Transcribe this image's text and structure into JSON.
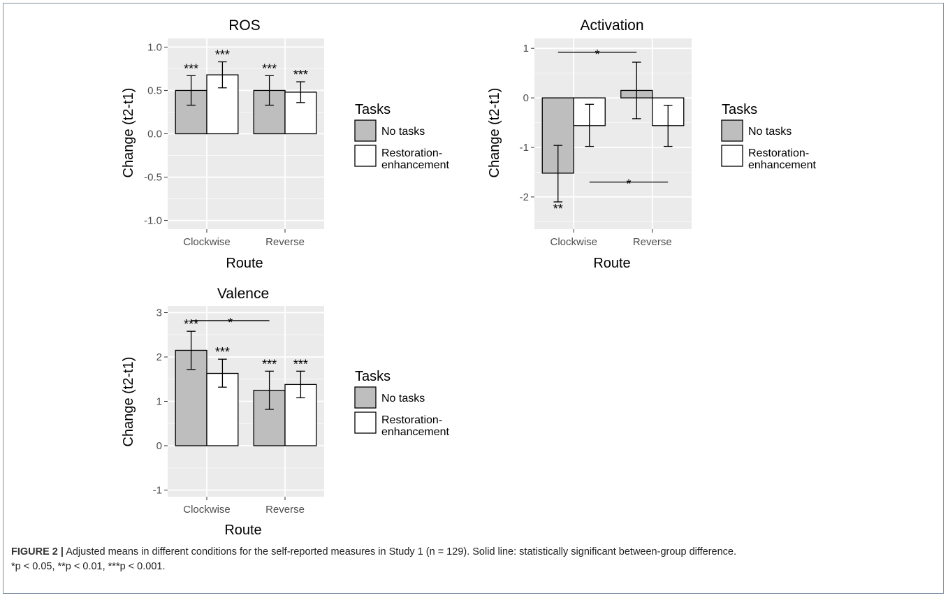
{
  "chart_data": [
    {
      "type": "bar",
      "title": "ROS",
      "xlabel": "Route",
      "ylabel": "Change (t2-t1)",
      "categories": [
        "Clockwise",
        "Reverse"
      ],
      "ylim": [
        -1.1,
        1.1
      ],
      "yticks": [
        -1.0,
        -0.5,
        0.0,
        0.5,
        1.0
      ],
      "ytick_labels": [
        "-1.0",
        "-0.5",
        "0.0",
        "0.5",
        "1.0"
      ],
      "grid": true,
      "legend": {
        "title": "Tasks",
        "placement": "right"
      },
      "series": [
        {
          "name": "No tasks",
          "color": "#bebebe",
          "values": [
            0.5,
            0.5
          ],
          "err_low": [
            0.33,
            0.33
          ],
          "err_high": [
            0.67,
            0.67
          ],
          "labels": [
            "***",
            "***"
          ]
        },
        {
          "name": "Restoration-enhancement",
          "color": "#ffffff",
          "values": [
            0.68,
            0.48
          ],
          "err_low": [
            0.53,
            0.36
          ],
          "err_high": [
            0.83,
            0.6
          ],
          "labels": [
            "***",
            "***"
          ]
        }
      ],
      "brackets": []
    },
    {
      "type": "bar",
      "title": "Activation",
      "xlabel": "Route",
      "ylabel": "Change (t2-t1)",
      "categories": [
        "Clockwise",
        "Reverse"
      ],
      "ylim": [
        -2.65,
        1.2
      ],
      "yticks": [
        -2,
        -1,
        0,
        1
      ],
      "ytick_labels": [
        "-2",
        "-1",
        "0",
        "1"
      ],
      "grid": true,
      "legend": {
        "title": "Tasks",
        "placement": "right"
      },
      "series": [
        {
          "name": "No tasks",
          "color": "#bebebe",
          "values": [
            -1.52,
            0.15
          ],
          "err_low": [
            -2.1,
            -0.42
          ],
          "err_high": [
            -0.96,
            0.72
          ],
          "labels": [
            "**",
            ""
          ]
        },
        {
          "name": "Restoration-enhancement",
          "color": "#ffffff",
          "values": [
            -0.56,
            -0.56
          ],
          "err_low": [
            -0.98,
            -0.98
          ],
          "err_high": [
            -0.13,
            -0.15
          ],
          "labels": [
            "",
            ""
          ]
        }
      ],
      "brackets": [
        {
          "from": [
            0,
            0
          ],
          "to": [
            1,
            0
          ],
          "y": 0.92,
          "label": "*"
        },
        {
          "from": [
            0,
            1
          ],
          "to": [
            1,
            1
          ],
          "y": -1.7,
          "label": "*"
        }
      ]
    },
    {
      "type": "bar",
      "title": "Valence",
      "xlabel": "Route",
      "ylabel": "Change (t2-t1)",
      "categories": [
        "Clockwise",
        "Reverse"
      ],
      "ylim": [
        -1.15,
        3.15
      ],
      "yticks": [
        -1,
        0,
        1,
        2,
        3
      ],
      "ytick_labels": [
        "-1",
        "0",
        "1",
        "2",
        "3"
      ],
      "grid": true,
      "legend": {
        "title": "Tasks",
        "placement": "right"
      },
      "series": [
        {
          "name": "No tasks",
          "color": "#bebebe",
          "values": [
            2.15,
            1.25
          ],
          "err_low": [
            1.72,
            0.82
          ],
          "err_high": [
            2.58,
            1.68
          ],
          "labels": [
            "***",
            "***"
          ]
        },
        {
          "name": "Restoration-enhancement",
          "color": "#ffffff",
          "values": [
            1.63,
            1.38
          ],
          "err_low": [
            1.32,
            1.08
          ],
          "err_high": [
            1.95,
            1.68
          ],
          "labels": [
            "***",
            "***"
          ]
        }
      ],
      "brackets": [
        {
          "from": [
            0,
            0
          ],
          "to": [
            1,
            0
          ],
          "y": 2.82,
          "label": "*"
        }
      ]
    }
  ],
  "caption": {
    "figure_label": "FIGURE 2 |",
    "line1": " Adjusted means in different conditions for the self-reported measures in Study 1 (n = 129). Solid line: statistically significant between-group difference.",
    "line2": "*p < 0.05, **p < 0.01, ***p < 0.001."
  }
}
